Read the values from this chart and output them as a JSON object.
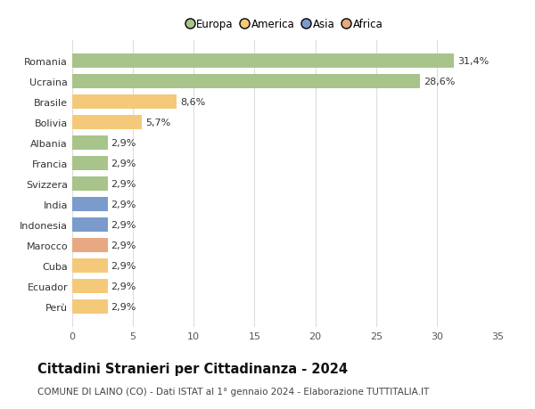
{
  "categories": [
    "Perù",
    "Ecuador",
    "Cuba",
    "Marocco",
    "Indonesia",
    "India",
    "Svizzera",
    "Francia",
    "Albania",
    "Bolivia",
    "Brasile",
    "Ucraina",
    "Romania"
  ],
  "values": [
    2.9,
    2.9,
    2.9,
    2.9,
    2.9,
    2.9,
    2.9,
    2.9,
    2.9,
    5.7,
    8.6,
    28.6,
    31.4
  ],
  "labels": [
    "2,9%",
    "2,9%",
    "2,9%",
    "2,9%",
    "2,9%",
    "2,9%",
    "2,9%",
    "2,9%",
    "2,9%",
    "5,7%",
    "8,6%",
    "28,6%",
    "31,4%"
  ],
  "colors": [
    "#f5c97a",
    "#f5c97a",
    "#f5c97a",
    "#e8a882",
    "#7b9bcc",
    "#7b9bcc",
    "#a8c48a",
    "#a8c48a",
    "#a8c48a",
    "#f5c97a",
    "#f5c97a",
    "#a8c48a",
    "#a8c48a"
  ],
  "legend_labels": [
    "Europa",
    "America",
    "Asia",
    "Africa"
  ],
  "legend_colors": [
    "#a8c48a",
    "#f5c97a",
    "#7b9bcc",
    "#e8a882"
  ],
  "title": "Cittadini Stranieri per Cittadinanza - 2024",
  "subtitle": "COMUNE DI LAINO (CO) - Dati ISTAT al 1° gennaio 2024 - Elaborazione TUTTITALIA.IT",
  "xlim": [
    0,
    35
  ],
  "xticks": [
    0,
    5,
    10,
    15,
    20,
    25,
    30,
    35
  ],
  "bg_color": "#ffffff",
  "plot_bg_color": "#ffffff",
  "grid_color": "#dddddd",
  "bar_height": 0.72,
  "label_fontsize": 8,
  "title_fontsize": 10.5,
  "subtitle_fontsize": 7.5,
  "tick_fontsize": 8,
  "legend_fontsize": 8.5
}
